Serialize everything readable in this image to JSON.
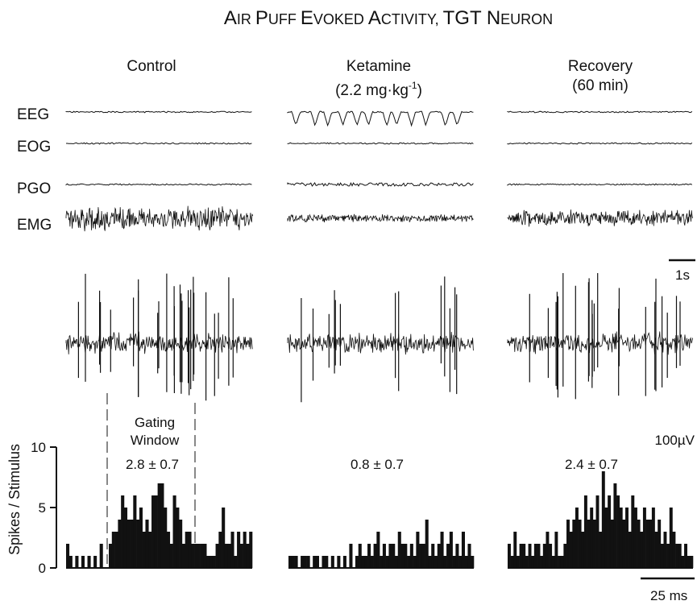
{
  "title_parts": [
    {
      "big": "A",
      "small": "IR "
    },
    {
      "big": "P",
      "small": "UFF "
    },
    {
      "big": "E",
      "small": "VOKED "
    },
    {
      "big": "A",
      "small": "CTIVITY,  "
    },
    {
      "big": "TGT N",
      "small": "EURON"
    }
  ],
  "title_text": "Air Puff Evoked Activity, TGT Neuron",
  "conditions": [
    {
      "label_lines": [
        "Control"
      ],
      "hist_label": "2.8 ± 0.7",
      "seed": 11,
      "spikes": 26,
      "emg_amp": 24,
      "eeg_dips": 0
    },
    {
      "label_lines": [
        "Ketamine"
      ],
      "sup": "-1",
      "hist_label": "0.8 ± 0.7",
      "seed": 29,
      "spikes": 13,
      "emg_amp": 8,
      "eeg_dips": 12
    },
    {
      "label_lines": [
        "Recovery",
        "(60 min)"
      ],
      "hist_label": "2.4 ± 0.7",
      "seed": 47,
      "spikes": 22,
      "emg_amp": 16,
      "eeg_dips": 0
    }
  ],
  "ketamine_dose_text": "(2.2 mg·kg",
  "ketamine_dose_close": ")",
  "trace_labels": [
    "EEG",
    "EOG",
    "PGO",
    "EMG"
  ],
  "scalebar_time_label": "1s",
  "scalebar_amp_label": "100µV",
  "scalebar_hist_label": "25 ms",
  "gating_window_lines": [
    "Gating",
    "Window"
  ],
  "y_axis_label": "Spikes / Stimulus",
  "y_ticks": [
    0,
    5,
    10
  ],
  "chart_data": {
    "type": "bar",
    "title": "Air Puff Evoked Activity, TGT Neuron",
    "ylabel": "Spikes / Stimulus",
    "xlabel": "",
    "ylim": [
      0,
      10
    ],
    "yticks": [
      0,
      5,
      10
    ],
    "grid": false,
    "series": [
      {
        "name": "Control",
        "annotation": "2.8 ± 0.7",
        "values": [
          2,
          1,
          0,
          1,
          0,
          1,
          0,
          1,
          0,
          1,
          0,
          2,
          0,
          0,
          2,
          3,
          3,
          4,
          6,
          5,
          4,
          4,
          6,
          4,
          5,
          3,
          4,
          3,
          6,
          6,
          7,
          7,
          5,
          3,
          2,
          6,
          5,
          4,
          2,
          3,
          3,
          2,
          2,
          2,
          2,
          2,
          1,
          1,
          1,
          2,
          3,
          5,
          2,
          2,
          3,
          1,
          3,
          2,
          3,
          2,
          3
        ]
      },
      {
        "name": "Ketamine",
        "annotation": "0.8 ± 0.7",
        "values": [
          1,
          1,
          1,
          0,
          1,
          1,
          1,
          0,
          1,
          1,
          0,
          1,
          1,
          0,
          1,
          0,
          1,
          0,
          1,
          0,
          2,
          0,
          1,
          2,
          1,
          1,
          2,
          1,
          2,
          3,
          1,
          2,
          1,
          2,
          2,
          1,
          3,
          2,
          2,
          1,
          2,
          1,
          3,
          2,
          2,
          4,
          1,
          2,
          1,
          2,
          3,
          1,
          2,
          3,
          1,
          2,
          1,
          3,
          1,
          2,
          1
        ]
      },
      {
        "name": "Recovery",
        "annotation": "2.4 ± 0.7",
        "values": [
          2,
          1,
          3,
          1,
          2,
          2,
          1,
          2,
          1,
          2,
          2,
          1,
          2,
          3,
          2,
          1,
          3,
          1,
          1,
          2,
          4,
          3,
          4,
          5,
          4,
          3,
          6,
          4,
          5,
          4,
          6,
          3,
          8,
          5,
          6,
          4,
          7,
          6,
          5,
          4,
          5,
          3,
          6,
          5,
          4,
          3,
          5,
          4,
          4,
          5,
          3,
          4,
          2,
          3,
          2,
          5,
          3,
          2,
          2,
          1,
          2,
          1,
          1
        ]
      }
    ]
  }
}
